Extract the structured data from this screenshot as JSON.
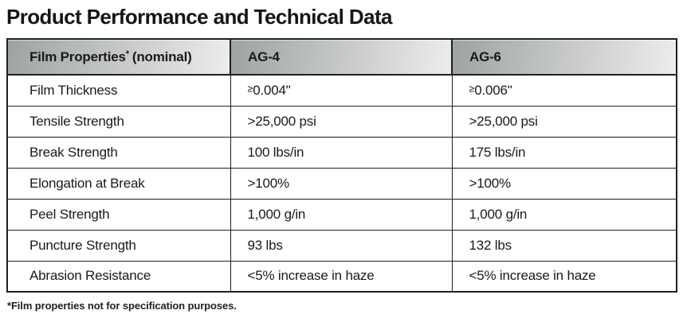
{
  "page": {
    "title": "Product Performance and Technical Data",
    "footnote": "*Film properties not for specification purposes."
  },
  "colors": {
    "header_gradient_start": "#9fa2a3",
    "header_gradient_end": "#eceeee",
    "table_border": "#1f1f1f",
    "text": "#1a1a1a",
    "background": "#ffffff"
  },
  "table": {
    "header": {
      "property": {
        "label": "Film Properties",
        "mark": "*",
        "qualifier": "(nominal)"
      },
      "ag4": "AG-4",
      "ag6": "AG-6"
    },
    "rows": [
      {
        "property": "Film Thickness",
        "ag4": {
          "sym": "≥",
          "text": "0.004\""
        },
        "ag6": {
          "sym": "≥",
          "text": "0.006\""
        }
      },
      {
        "property": "Tensile Strength",
        "ag4": {
          "sym": "",
          "text": ">25,000 psi"
        },
        "ag6": {
          "sym": "",
          "text": ">25,000 psi"
        }
      },
      {
        "property": "Break Strength",
        "ag4": {
          "sym": "",
          "text": "100 lbs/in"
        },
        "ag6": {
          "sym": "",
          "text": "175 lbs/in"
        }
      },
      {
        "property": "Elongation at Break",
        "ag4": {
          "sym": "",
          "text": ">100%"
        },
        "ag6": {
          "sym": "",
          "text": ">100%"
        }
      },
      {
        "property": "Peel Strength",
        "ag4": {
          "sym": "",
          "text": "1,000 g/in"
        },
        "ag6": {
          "sym": "",
          "text": "1,000 g/in"
        }
      },
      {
        "property": "Puncture Strength",
        "ag4": {
          "sym": "",
          "text": "93 lbs"
        },
        "ag6": {
          "sym": "",
          "text": "132 lbs"
        }
      },
      {
        "property": "Abrasion Resistance",
        "ag4": {
          "sym": "",
          "text": "<5% increase in haze"
        },
        "ag6": {
          "sym": "",
          "text": "<5% increase in haze"
        }
      }
    ]
  }
}
